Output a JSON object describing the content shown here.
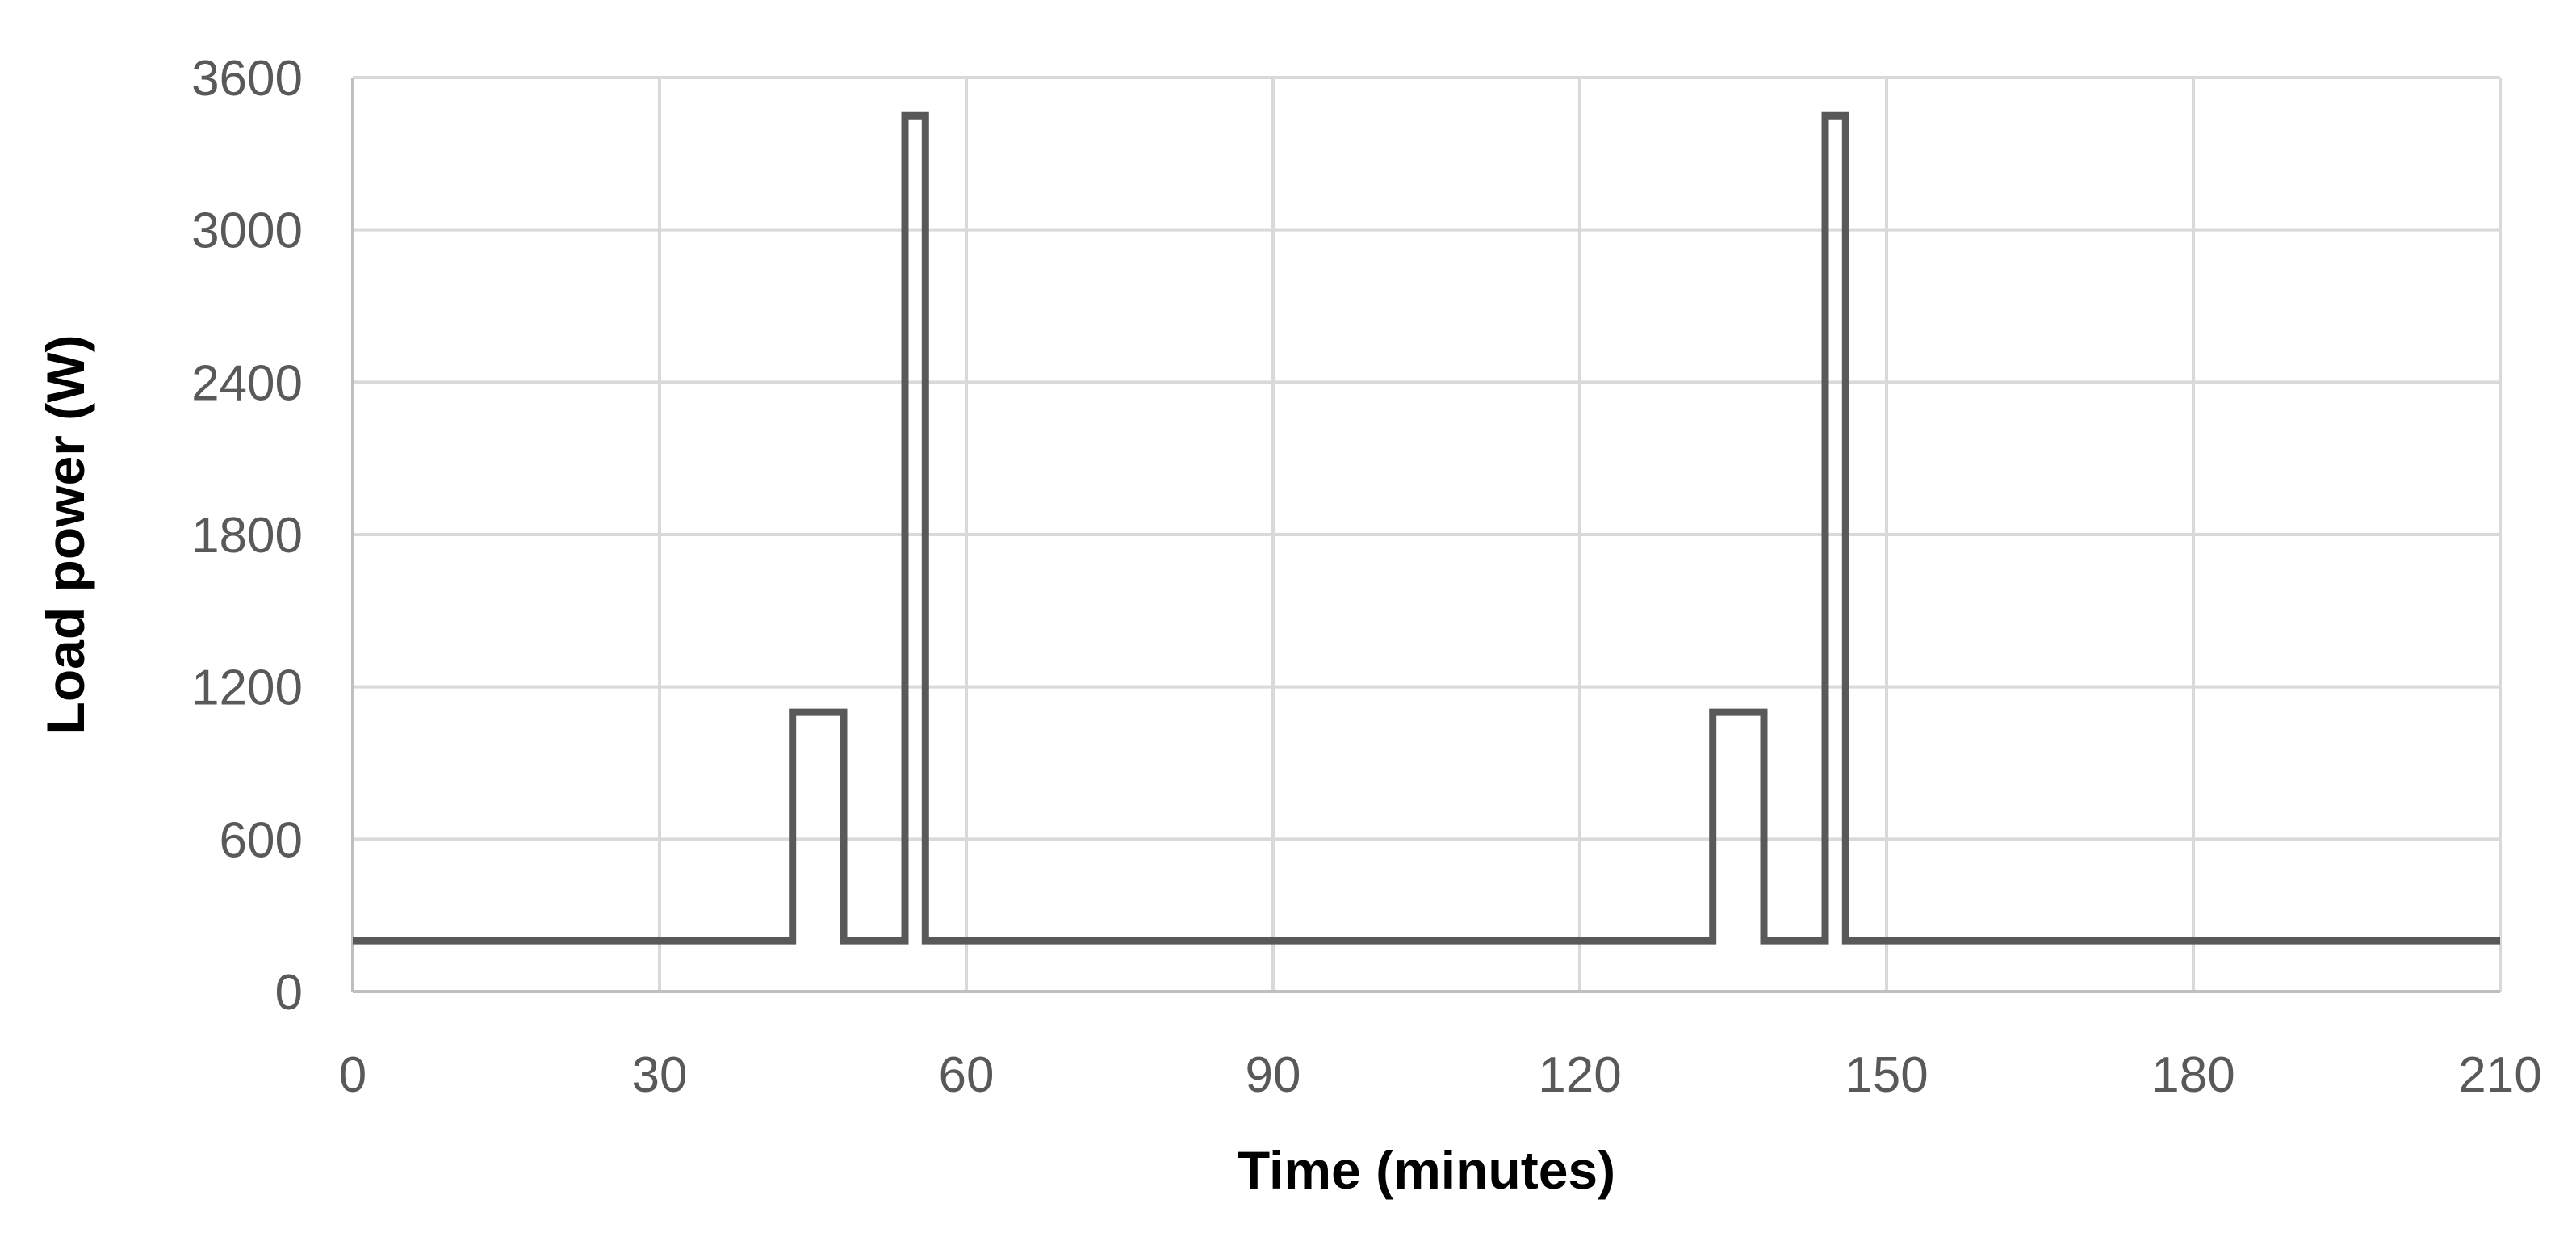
{
  "chart_data": {
    "type": "line",
    "title": "",
    "xlabel": "Time (minutes)",
    "ylabel": "Load power (W)",
    "xlim": [
      0,
      210
    ],
    "ylim": [
      0,
      3600
    ],
    "x_ticks": [
      "0",
      "30",
      "60",
      "90",
      "120",
      "150",
      "180",
      "210"
    ],
    "y_ticks": [
      "0",
      "600",
      "1200",
      "1800",
      "2400",
      "3000",
      "3600"
    ],
    "x_tick_values": [
      0,
      30,
      60,
      90,
      120,
      150,
      180,
      210
    ],
    "y_tick_values": [
      0,
      600,
      1200,
      1800,
      2400,
      3000,
      3600
    ],
    "grid": true,
    "legend": "none",
    "series": [
      {
        "color": "#595959",
        "step": true,
        "points": [
          [
            0,
            200
          ],
          [
            43,
            200
          ],
          [
            43,
            1100
          ],
          [
            48,
            1100
          ],
          [
            48,
            200
          ],
          [
            54,
            200
          ],
          [
            54,
            3450
          ],
          [
            56,
            3450
          ],
          [
            56,
            200
          ],
          [
            133,
            200
          ],
          [
            133,
            1100
          ],
          [
            138,
            1100
          ],
          [
            138,
            200
          ],
          [
            144,
            200
          ],
          [
            144,
            3450
          ],
          [
            146,
            3450
          ],
          [
            146,
            200
          ],
          [
            210,
            200
          ]
        ]
      }
    ]
  }
}
